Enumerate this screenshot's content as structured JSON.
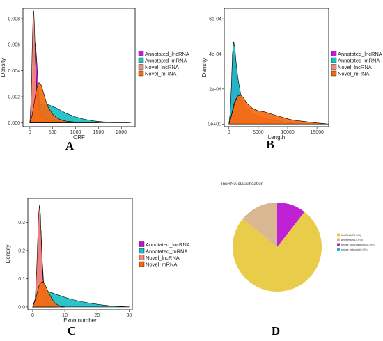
{
  "chart_data": [
    {
      "panel": "A",
      "type": "area",
      "xlabel": "ORF",
      "ylabel": "Density",
      "xlim": [
        -150,
        2300
      ],
      "ylim": [
        -0.0003,
        0.0088
      ],
      "xticks": [
        0,
        500,
        1000,
        1500,
        2000
      ],
      "xtick_labels": [
        "0",
        "500",
        "1000",
        "1500",
        "2000"
      ],
      "yticks": [
        0,
        0.002,
        0.004,
        0.006,
        0.008
      ],
      "ytick_labels": [
        "0.000",
        "0.002",
        "0.004",
        "0.006",
        "0.008"
      ],
      "legend_position": "right",
      "series": [
        {
          "name": "Annotated_lncRNA",
          "color": "#c41ad8",
          "x": [
            0,
            40,
            70,
            90,
            110,
            130,
            150,
            180,
            210,
            250,
            300,
            360,
            450,
            600
          ],
          "y": [
            0,
            0.0012,
            0.0036,
            0.0054,
            0.0062,
            0.0058,
            0.0048,
            0.003,
            0.0016,
            0.0008,
            0.0004,
            0.0002,
            5e-05,
            0
          ]
        },
        {
          "name": "Annotated_mRNA",
          "color": "#18bfc7",
          "x": [
            0,
            50,
            100,
            150,
            200,
            250,
            300,
            400,
            500,
            600,
            700,
            800,
            1000,
            1200,
            1400,
            1600,
            1800,
            2000,
            2200
          ],
          "y": [
            0,
            0.0002,
            0.0006,
            0.001,
            0.0013,
            0.0014,
            0.00145,
            0.0014,
            0.00125,
            0.0011,
            0.0009,
            0.00072,
            0.00045,
            0.00026,
            0.00014,
            7e-05,
            3e-05,
            1e-05,
            0
          ]
        },
        {
          "name": "Novel_lncRNA",
          "color": "#f08878",
          "x": [
            0,
            30,
            50,
            70,
            85,
            100,
            120,
            150,
            200,
            260,
            350,
            500,
            700,
            900,
            1100
          ],
          "y": [
            0,
            0.002,
            0.0055,
            0.0082,
            0.0086,
            0.0075,
            0.005,
            0.0025,
            0.001,
            0.0005,
            0.0003,
            0.00015,
            6e-05,
            2e-05,
            0
          ]
        },
        {
          "name": "Novel_mRNA",
          "color": "#f46a10",
          "x": [
            0,
            40,
            80,
            120,
            160,
            200,
            250,
            300,
            350,
            400,
            500,
            600,
            700,
            800,
            1000,
            1200,
            1500
          ],
          "y": [
            0,
            0.0004,
            0.0012,
            0.0021,
            0.0028,
            0.0031,
            0.0029,
            0.0023,
            0.0017,
            0.0012,
            0.00065,
            0.00035,
            0.0002,
            0.00012,
            5e-05,
            2e-05,
            0
          ]
        }
      ]
    },
    {
      "panel": "B",
      "type": "area",
      "xlabel": "Length",
      "ylabel": "Density",
      "xlim": [
        -800,
        17000
      ],
      "ylim": [
        -1.5e-05,
        0.00066
      ],
      "xticks": [
        0,
        5000,
        10000,
        15000
      ],
      "xtick_labels": [
        "0",
        "5000",
        "10000",
        "15000"
      ],
      "yticks": [
        0,
        0.0002,
        0.0004,
        0.0006
      ],
      "ytick_labels": [
        "0e+00",
        "2e-04",
        "4e-04",
        "6e-04"
      ],
      "legend_position": "right",
      "series": [
        {
          "name": "Annotated_lncRNA",
          "color": "#c41ad8",
          "x": [
            0,
            200,
            400,
            600,
            800,
            1000,
            1300,
            1700,
            2200,
            3000,
            4000,
            5000
          ],
          "y": [
            0,
            5e-05,
            0.00018,
            0.00034,
            0.00042,
            0.0004,
            0.0003,
            0.00018,
            0.0001,
            5e-05,
            2e-05,
            0
          ]
        },
        {
          "name": "Annotated_mRNA",
          "color": "#18bfc7",
          "x": [
            0,
            200,
            400,
            600,
            800,
            1000,
            1200,
            1500,
            2000,
            2500,
            3000,
            4000,
            5000,
            6000,
            8000,
            10000
          ],
          "y": [
            0,
            6e-05,
            0.0002,
            0.0004,
            0.00047,
            0.00044,
            0.00036,
            0.00027,
            0.00017,
            0.00011,
            7e-05,
            4e-05,
            2e-05,
            1e-05,
            3e-06,
            0
          ]
        },
        {
          "name": "Novel_lncRNA",
          "color": "#f08878",
          "x": [
            0,
            200,
            500,
            800,
            1100,
            1400,
            1800,
            2300,
            3000,
            4000,
            5000,
            6500,
            8000,
            10000,
            12000
          ],
          "y": [
            0,
            2e-05,
            6e-05,
            0.00011,
            0.00014,
            0.00015,
            0.00014,
            0.00012,
            9e-05,
            6e-05,
            4.5e-05,
            3e-05,
            2e-05,
            8e-06,
            0
          ]
        },
        {
          "name": "Novel_mRNA",
          "color": "#f46a10",
          "x": [
            0,
            300,
            600,
            1000,
            1500,
            2000,
            2500,
            3000,
            4000,
            5000,
            6000,
            7000,
            8000,
            9000,
            10000,
            11000,
            12000,
            13000,
            14000,
            15000,
            16000,
            17000
          ],
          "y": [
            0,
            3e-05,
            7e-05,
            0.00012,
            0.00016,
            0.000165,
            0.00015,
            0.00012,
            9e-05,
            7.5e-05,
            7e-05,
            6e-05,
            5e-05,
            4e-05,
            3e-05,
            2.2e-05,
            1.8e-05,
            1.4e-05,
            1e-05,
            6e-06,
            3e-06,
            0
          ]
        }
      ]
    },
    {
      "panel": "C",
      "type": "area",
      "xlabel": "Exon number",
      "ylabel": "Density",
      "xlim": [
        -1.5,
        31
      ],
      "ylim": [
        -0.01,
        0.385
      ],
      "xticks": [
        0,
        10,
        20,
        30
      ],
      "xtick_labels": [
        "0",
        "10",
        "20",
        "30"
      ],
      "yticks": [
        0,
        0.1,
        0.2,
        0.3
      ],
      "ytick_labels": [
        "0.0",
        "0.1",
        "0.2",
        "0.3"
      ],
      "legend_position": "right",
      "series": [
        {
          "name": "Annotated_lncRNA",
          "color": "#c41ad8",
          "x": [
            0,
            0.8,
            1.3,
            1.8,
            2.2,
            2.6,
            3.0,
            3.5,
            4.0,
            5.0,
            6.0
          ],
          "y": [
            0,
            0.02,
            0.1,
            0.23,
            0.3,
            0.27,
            0.16,
            0.07,
            0.03,
            0.008,
            0
          ]
        },
        {
          "name": "Annotated_mRNA",
          "color": "#18bfc7",
          "x": [
            0,
            1,
            2,
            3,
            4,
            5,
            6,
            8,
            10,
            12,
            15,
            18,
            21,
            24,
            27,
            30
          ],
          "y": [
            0,
            0.015,
            0.035,
            0.05,
            0.055,
            0.054,
            0.05,
            0.042,
            0.034,
            0.027,
            0.019,
            0.013,
            0.008,
            0.004,
            0.002,
            0.0005
          ]
        },
        {
          "name": "Novel_lncRNA",
          "color": "#f08878",
          "x": [
            0,
            0.8,
            1.3,
            1.8,
            2.1,
            2.4,
            2.8,
            3.2,
            3.8,
            4.5,
            5.5,
            7.0
          ],
          "y": [
            0,
            0.03,
            0.15,
            0.32,
            0.36,
            0.33,
            0.2,
            0.1,
            0.04,
            0.015,
            0.004,
            0
          ]
        },
        {
          "name": "Novel_mRNA",
          "color": "#f46a10",
          "x": [
            0,
            1,
            1.5,
            2,
            2.5,
            3,
            3.5,
            4,
            5,
            6,
            7,
            8,
            9,
            10
          ],
          "y": [
            0,
            0.03,
            0.055,
            0.075,
            0.085,
            0.09,
            0.085,
            0.075,
            0.05,
            0.028,
            0.013,
            0.006,
            0.002,
            0
          ]
        }
      ]
    },
    {
      "panel": "D",
      "type": "pie",
      "title": "lncRNA classification",
      "legend_position": "right",
      "slices": [
        {
          "label": "lincRNA(75.3%)",
          "value": 75.3,
          "color": "#e8cc4a"
        },
        {
          "label": "antisense(14.0%)",
          "value": 14.0,
          "color": "#d9b790"
        },
        {
          "label": "sense_overlapping(10.5%)",
          "value": 10.5,
          "color": "#c020d6"
        },
        {
          "label": "sense_intronic(0.0%)",
          "value": 0.0,
          "color": "#18bfc7"
        }
      ]
    }
  ],
  "panel_letters": [
    "A",
    "B",
    "C",
    "D"
  ]
}
